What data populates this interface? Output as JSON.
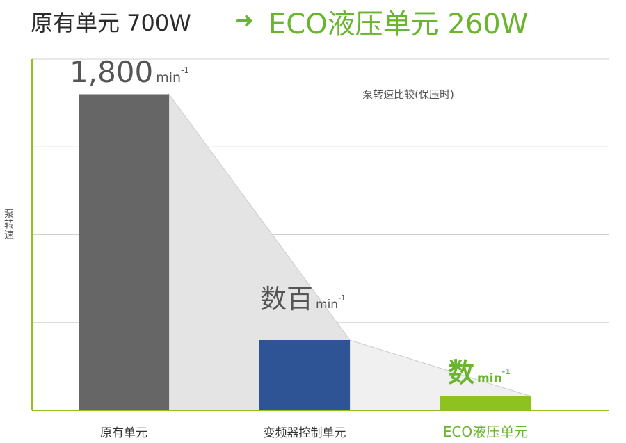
{
  "header": {
    "old_unit": "原有单元 700W",
    "new_unit": "ECO液压单元 260W"
  },
  "colors": {
    "accent_green": "#6ab52e",
    "bar_gray": "#666666",
    "bar_blue": "#2e5496",
    "bar_green": "#8ec31f",
    "grid": "#d0d0d0",
    "axis": "#8ec31f"
  },
  "chart_data": {
    "type": "bar",
    "title": "泵转速比较(保压时)",
    "ylabel": "泵转速",
    "categories": [
      "原有单元",
      "变频器控制单元",
      "ECO液压单元"
    ],
    "values": [
      1800,
      400,
      80
    ],
    "value_labels": [
      {
        "main": "1,800",
        "unit": "min",
        "sup": "-1"
      },
      {
        "main": "数百",
        "unit": "min",
        "sup": "-1"
      },
      {
        "main": "数",
        "unit": "min",
        "sup": "-1"
      }
    ],
    "ylim": [
      0,
      2000
    ],
    "grid": true
  }
}
